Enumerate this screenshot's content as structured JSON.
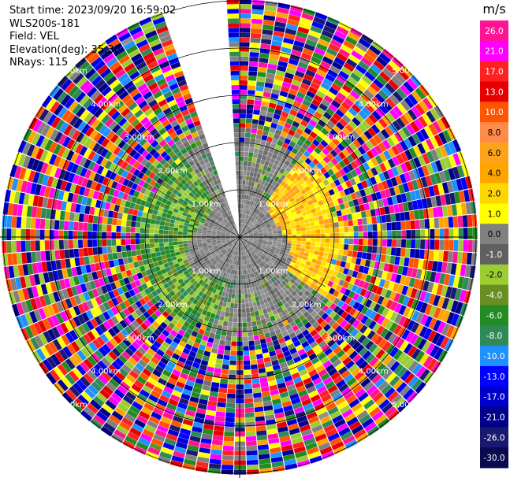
{
  "info": {
    "start_time": "Start time: 2023/09/20 16:59:02",
    "instrument": "WLS200s-181",
    "field": "Field: VEL",
    "elevation": "Elevation(deg): 35.30",
    "nrays": "NRays: 115"
  },
  "chart_data": {
    "type": "heatmap",
    "subtype": "polar-ppi",
    "field": "VEL",
    "units": "m/s",
    "nrays": 115,
    "elevation_deg": 35.3,
    "range_rings_km": [
      1,
      2,
      3,
      4,
      5
    ],
    "range_ring_labels": [
      "1.00km",
      "2.00km",
      "3.00km",
      "4.00km",
      "5.00km"
    ],
    "missing_sector_deg": [
      -18,
      -4
    ],
    "colorbar": {
      "unit_label": "m/s",
      "tick_labels": [
        "26.0",
        "21.0",
        "17.0",
        "13.0",
        "10.0",
        "8.0",
        "6.0",
        "4.0",
        "2.0",
        "1.0",
        "0.0",
        "-1.0",
        "-2.0",
        "-4.0",
        "-6.0",
        "-8.0",
        "-10.0",
        "-13.0",
        "-17.0",
        "-21.0",
        "-26.0",
        "-30.0"
      ],
      "segment_colors": [
        "#ff1493",
        "#ff00ff",
        "#ff2020",
        "#e60000",
        "#ff5500",
        "#ff8a4a",
        "#ffa31a",
        "#ffa500",
        "#ffd700",
        "#ffff00",
        "#808080",
        "#606060",
        "#9acd32",
        "#6b8e23",
        "#228b22",
        "#2e8b57",
        "#1e90ff",
        "#0000ff",
        "#0000cd",
        "#00008b",
        "#191970",
        "#0a0a50"
      ]
    },
    "field_pattern": {
      "positive_sector_center_deg": 80,
      "positive_colors": [
        "#ffd700",
        "#ffff00",
        "#ffa500",
        "#ffa31a",
        "#ffdd00"
      ],
      "negative_colors": [
        "#228b22",
        "#6b8e23",
        "#9acd32",
        "#2e8b57"
      ],
      "near_zero_colors": [
        "#808080",
        "#6f6f6f",
        "#909090"
      ],
      "noise_palette": [
        "#ff1493",
        "#ff00ff",
        "#ff2020",
        "#e60000",
        "#ff5500",
        "#ffa500",
        "#ffff00",
        "#9acd32",
        "#228b22",
        "#1e90ff",
        "#0000ff",
        "#0000cd",
        "#00008b",
        "#191970",
        "#808080",
        "#2e8b57"
      ]
    }
  }
}
